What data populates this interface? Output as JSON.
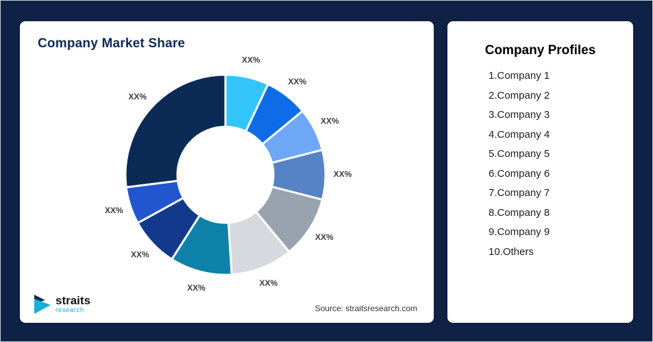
{
  "chart_data": {
    "type": "pie",
    "donut": true,
    "title": "Company Market Share",
    "legend_position": "right-panel",
    "categories": [
      "Company 1",
      "Company 2",
      "Company 3",
      "Company 4",
      "Company 5",
      "Company 6",
      "Company 7",
      "Company 8",
      "Company 9",
      "Others"
    ],
    "segments": [
      {
        "category": "Company 1",
        "label": "XX%",
        "value": 7,
        "color": "#33c5f8"
      },
      {
        "category": "Company 2",
        "label": "XX%",
        "value": 7,
        "color": "#0e6ce6"
      },
      {
        "category": "Company 3",
        "label": "XX%",
        "value": 7,
        "color": "#6fa7f7"
      },
      {
        "category": "Company 4",
        "label": "XX%",
        "value": 8,
        "color": "#5583c6"
      },
      {
        "category": "Company 5",
        "label": "XX%",
        "value": 10,
        "color": "#99a3af"
      },
      {
        "category": "Company 6",
        "label": "XX%",
        "value": 10,
        "color": "#d6dade"
      },
      {
        "category": "Company 7",
        "label": "XX%",
        "value": 10,
        "color": "#0e82a8"
      },
      {
        "category": "Company 8",
        "label": "XX%",
        "value": 8,
        "color": "#12398c"
      },
      {
        "category": "Company 9",
        "label": "XX%",
        "value": 6,
        "color": "#2256cf"
      },
      {
        "category": "Others",
        "label": "XX%",
        "value": 27,
        "color": "#0c2a56"
      }
    ]
  },
  "profiles": {
    "title": "Company Profiles",
    "items": [
      "1.Company 1",
      "2.Company 2",
      "3.Company 3",
      "4.Company 4",
      "5.Company 5",
      "6.Company 6",
      "7.Company 7",
      "8.Company 8",
      "9.Company 9",
      "10.Others"
    ]
  },
  "source": "Source: straitsresearch.com",
  "logo": {
    "name": "straits",
    "subtitle": "research"
  },
  "colors": {
    "background": "#0f2145",
    "card": "#ffffff",
    "title": "#0c2a56",
    "accent": "#18a6d8"
  }
}
